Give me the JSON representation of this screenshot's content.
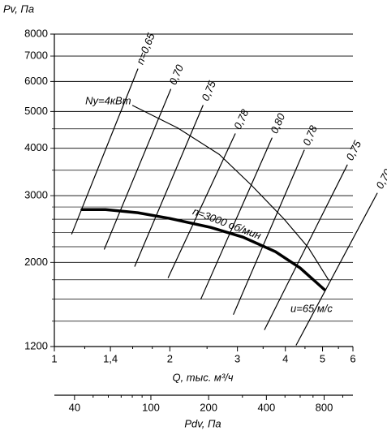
{
  "chart_data": {
    "type": "line",
    "y_label": "Pv, Па",
    "x_label": "Q, тыс. м³/ч",
    "x2_label": "Pdv, Па",
    "log_x": true,
    "log_y": true,
    "xlim": [
      1,
      6
    ],
    "ylim": [
      1200,
      8000
    ],
    "xticks": [
      1,
      {
        "value": 1.4,
        "label": "1,4"
      },
      2,
      3,
      4,
      5,
      6
    ],
    "x_minor_ticks": [
      1.2,
      1.6,
      1.8,
      2.5,
      3.5,
      4.5,
      5.5
    ],
    "yticks": [
      1200,
      2000,
      3000,
      4000,
      5000,
      6000,
      7000,
      8000
    ],
    "y_minor_ticks": [
      1400,
      1600,
      1800,
      2200,
      2400,
      2600,
      2800,
      3500,
      4500
    ],
    "x2lim": [
      31.4,
      1130
    ],
    "x2ticks": [
      40,
      100,
      200,
      400,
      800
    ],
    "x2_minor_ticks": [
      50,
      60,
      70,
      80,
      90,
      300,
      500,
      600,
      700,
      1000
    ],
    "series": [
      {
        "name": "n=3000 об/мин",
        "color": "#000000",
        "line_width": 3.5,
        "x": [
          1.18,
          1.36,
          1.65,
          2.0,
          2.56,
          3.1,
          3.77,
          4.37,
          5.06
        ],
        "values": [
          2757,
          2757,
          2704,
          2612,
          2473,
          2332,
          2134,
          1933,
          1694
        ]
      },
      {
        "name": "Ny=4кВт",
        "color": "#000000",
        "line_width": 1.2,
        "x": [
          1.6,
          2.1,
          2.69,
          3.26,
          3.97,
          4.59,
          5.19
        ],
        "values": [
          5185,
          4519,
          3855,
          3199,
          2601,
          2188,
          1795
        ]
      },
      {
        "name": "n=0,65",
        "color": "#000000",
        "line_width": 1.2,
        "x": [
          1.11,
          1.65
        ],
        "values": [
          2377,
          6471
        ]
      },
      {
        "name": "0,70",
        "color": "#000000",
        "line_width": 1.2,
        "x": [
          1.35,
          2.01
        ],
        "values": [
          2168,
          5719
        ]
      },
      {
        "name": "0,75",
        "color": "#000000",
        "line_width": 1.2,
        "x": [
          1.62,
          2.44
        ],
        "values": [
          1954,
          5188
        ]
      },
      {
        "name": "0,78",
        "color": "#000000",
        "line_width": 1.2,
        "x": [
          1.98,
          2.96
        ],
        "values": [
          1823,
          4365
        ]
      },
      {
        "name": "0,80",
        "color": "#000000",
        "line_width": 1.2,
        "x": [
          2.41,
          3.69
        ],
        "values": [
          1603,
          4256
        ]
      },
      {
        "name": "0,78",
        "color": "#000000",
        "line_width": 1.2,
        "x": [
          2.93,
          4.48
        ],
        "values": [
          1459,
          3954
        ]
      },
      {
        "name": "0,75",
        "color": "#000000",
        "line_width": 1.2,
        "x": [
          3.53,
          5.8
        ],
        "values": [
          1330,
          3614
        ]
      },
      {
        "name": "0,70",
        "color": "#000000",
        "line_width": 1.2,
        "x": [
          4.27,
          6.94
        ],
        "values": [
          1211,
          3044
        ]
      }
    ],
    "annotation": "u=65 м/с"
  }
}
